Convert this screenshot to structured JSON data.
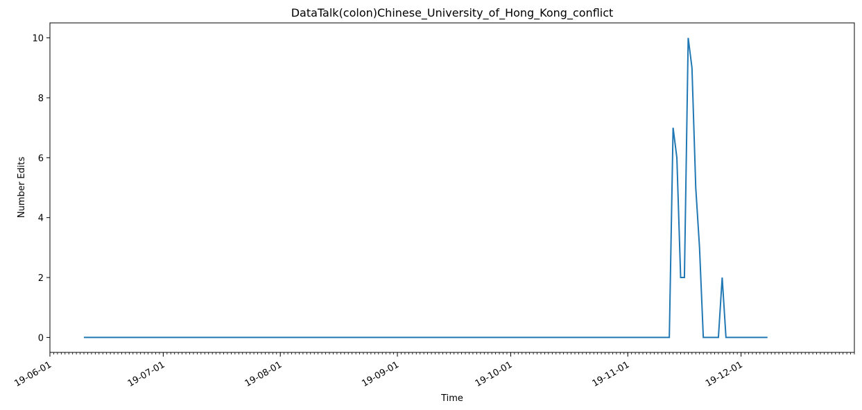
{
  "chart_data": {
    "type": "line",
    "title": "DataTalk(colon)Chinese_University_of_Hong_Kong_conflict",
    "xlabel": "Time",
    "ylabel": "Number Edits",
    "x_range": [
      "2019-06-01",
      "2019-12-31"
    ],
    "ylim": [
      -0.5,
      10.5
    ],
    "y_ticks": [
      0,
      2,
      4,
      6,
      8,
      10
    ],
    "x_ticks": [
      {
        "date": "2019-06-01",
        "label": "19-06-01"
      },
      {
        "date": "2019-07-01",
        "label": "19-07-01"
      },
      {
        "date": "2019-08-01",
        "label": "19-08-01"
      },
      {
        "date": "2019-09-01",
        "label": "19-09-01"
      },
      {
        "date": "2019-10-01",
        "label": "19-10-01"
      },
      {
        "date": "2019-11-01",
        "label": "19-11-01"
      },
      {
        "date": "2019-12-01",
        "label": "19-12-01"
      }
    ],
    "grid": false,
    "line_color": "#1f77b4",
    "series": [
      {
        "points": [
          [
            "2019-06-10",
            0
          ],
          [
            "2019-11-12",
            0
          ],
          [
            "2019-11-13",
            7
          ],
          [
            "2019-11-14",
            6
          ],
          [
            "2019-11-15",
            2
          ],
          [
            "2019-11-16",
            2
          ],
          [
            "2019-11-17",
            10
          ],
          [
            "2019-11-18",
            9
          ],
          [
            "2019-11-19",
            5
          ],
          [
            "2019-11-20",
            3
          ],
          [
            "2019-11-21",
            0
          ],
          [
            "2019-11-25",
            0
          ],
          [
            "2019-11-26",
            2
          ],
          [
            "2019-11-27",
            0
          ],
          [
            "2019-12-08",
            0
          ]
        ]
      }
    ]
  }
}
